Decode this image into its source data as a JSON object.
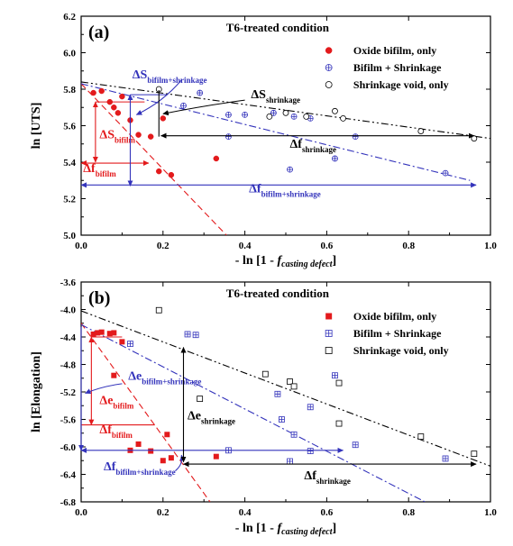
{
  "chart_data": [
    {
      "panel_label": "(a)",
      "title": "T6-treated condition",
      "type": "scatter",
      "xlabel_parts": [
        "- ln [1 - ",
        "f",
        "casting defect",
        "]"
      ],
      "ylabel": "ln [UTS]",
      "xlim": [
        0.0,
        1.0
      ],
      "ylim": [
        5.0,
        6.2
      ],
      "xticks": [
        "0.0",
        "0.2",
        "0.4",
        "0.6",
        "0.8",
        "1.0"
      ],
      "yticks": [
        "5.0",
        "5.2",
        "5.4",
        "5.6",
        "5.8",
        "6.0",
        "6.2"
      ],
      "legend_position": "top-right",
      "series": [
        {
          "name": "Oxide bifilm, only",
          "marker": "filled-circle",
          "color": "#e31a1c",
          "points": [
            [
              0.03,
              5.78
            ],
            [
              0.05,
              5.79
            ],
            [
              0.07,
              5.73
            ],
            [
              0.08,
              5.7
            ],
            [
              0.09,
              5.67
            ],
            [
              0.1,
              5.76
            ],
            [
              0.12,
              5.63
            ],
            [
              0.14,
              5.55
            ],
            [
              0.17,
              5.54
            ],
            [
              0.2,
              5.64
            ],
            [
              0.19,
              5.35
            ],
            [
              0.22,
              5.33
            ],
            [
              0.33,
              5.42
            ]
          ]
        },
        {
          "name": "Bifilm + Shrinkage",
          "marker": "circle-plus",
          "color": "#3333bb",
          "points": [
            [
              0.25,
              5.71
            ],
            [
              0.29,
              5.78
            ],
            [
              0.36,
              5.66
            ],
            [
              0.36,
              5.54
            ],
            [
              0.4,
              5.66
            ],
            [
              0.47,
              5.67
            ],
            [
              0.51,
              5.36
            ],
            [
              0.52,
              5.65
            ],
            [
              0.56,
              5.64
            ],
            [
              0.62,
              5.42
            ],
            [
              0.67,
              5.54
            ],
            [
              0.89,
              5.34
            ]
          ]
        },
        {
          "name": "Shrinkage void, only",
          "marker": "open-circle",
          "color": "#000000",
          "points": [
            [
              0.19,
              5.8
            ],
            [
              0.46,
              5.65
            ],
            [
              0.5,
              5.67
            ],
            [
              0.55,
              5.65
            ],
            [
              0.62,
              5.68
            ],
            [
              0.64,
              5.64
            ],
            [
              0.83,
              5.57
            ],
            [
              0.96,
              5.53
            ]
          ]
        }
      ],
      "fit_lines": [
        {
          "series": "Oxide bifilm, only",
          "style": "dashed",
          "color": "#e31a1c",
          "points": [
            [
              0.0,
              5.83
            ],
            [
              0.355,
              5.0
            ]
          ]
        },
        {
          "series": "Bifilm + Shrinkage",
          "style": "dash-dot",
          "color": "#3333bb",
          "points": [
            [
              0.0,
              5.83
            ],
            [
              0.95,
              5.3
            ]
          ]
        },
        {
          "series": "Shrinkage void, only",
          "style": "dash-dot-dot",
          "color": "#000000",
          "points": [
            [
              0.0,
              5.84
            ],
            [
              1.0,
              5.53
            ]
          ]
        }
      ],
      "annotations": [
        {
          "label": "ΔS",
          "sub": "bifilm",
          "color": "#e31a1c"
        },
        {
          "label": "Δf",
          "sub": "bifilm",
          "color": "#e31a1c"
        },
        {
          "label": "ΔS",
          "sub": "bifilm+shrinkage",
          "color": "#3333bb"
        },
        {
          "label": "Δf",
          "sub": "bifilm+shrinkage",
          "color": "#3333bb"
        },
        {
          "label": "ΔS",
          "sub": "shrinkage",
          "color": "#000000"
        },
        {
          "label": "Δf",
          "sub": "shrinkage",
          "color": "#000000"
        }
      ]
    },
    {
      "panel_label": "(b)",
      "title": "T6-treated condition",
      "type": "scatter",
      "xlabel_parts": [
        "- ln [1 - ",
        "f",
        "casting defect",
        "]"
      ],
      "ylabel": "ln [Elongation]",
      "xlim": [
        0.0,
        1.0
      ],
      "ylim": [
        -6.8,
        -3.6
      ],
      "xticks": [
        "0.0",
        "0.2",
        "0.4",
        "0.6",
        "0.8",
        "1.0"
      ],
      "yticks": [
        "-6.8",
        "-6.4",
        "-6.0",
        "-5.6",
        "-5.2",
        "-4.8",
        "-4.4",
        "-4.0",
        "-3.6"
      ],
      "legend_position": "top-right",
      "series": [
        {
          "name": "Oxide bifilm, only",
          "marker": "filled-square",
          "color": "#e31a1c",
          "points": [
            [
              0.03,
              -4.36
            ],
            [
              0.04,
              -4.34
            ],
            [
              0.05,
              -4.33
            ],
            [
              0.07,
              -4.35
            ],
            [
              0.08,
              -4.34
            ],
            [
              0.1,
              -4.47
            ],
            [
              0.08,
              -4.96
            ],
            [
              0.14,
              -5.96
            ],
            [
              0.12,
              -6.05
            ],
            [
              0.17,
              -6.06
            ],
            [
              0.2,
              -6.2
            ],
            [
              0.21,
              -5.82
            ],
            [
              0.22,
              -6.16
            ],
            [
              0.33,
              -6.14
            ]
          ]
        },
        {
          "name": "Bifilm + Shrinkage",
          "marker": "square-plus",
          "color": "#3333bb",
          "points": [
            [
              0.12,
              -4.5
            ],
            [
              0.26,
              -4.36
            ],
            [
              0.28,
              -4.37
            ],
            [
              0.36,
              -6.05
            ],
            [
              0.48,
              -5.23
            ],
            [
              0.49,
              -5.6
            ],
            [
              0.51,
              -6.21
            ],
            [
              0.52,
              -5.82
            ],
            [
              0.56,
              -5.42
            ],
            [
              0.56,
              -6.06
            ],
            [
              0.62,
              -4.96
            ],
            [
              0.67,
              -5.97
            ],
            [
              0.89,
              -6.17
            ]
          ]
        },
        {
          "name": "Shrinkage void, only",
          "marker": "open-square",
          "color": "#000000",
          "points": [
            [
              0.19,
              -4.01
            ],
            [
              0.29,
              -5.3
            ],
            [
              0.45,
              -4.94
            ],
            [
              0.51,
              -5.05
            ],
            [
              0.52,
              -5.12
            ],
            [
              0.63,
              -5.07
            ],
            [
              0.63,
              -5.66
            ],
            [
              0.83,
              -5.85
            ],
            [
              0.96,
              -6.1
            ]
          ]
        }
      ],
      "fit_lines": [
        {
          "series": "Oxide bifilm, only",
          "style": "dashed",
          "color": "#e31a1c",
          "points": [
            [
              0.0,
              -4.2
            ],
            [
              0.315,
              -6.8
            ]
          ]
        },
        {
          "series": "Bifilm + Shrinkage",
          "style": "dash-dot",
          "color": "#3333bb",
          "points": [
            [
              0.0,
              -4.22
            ],
            [
              0.84,
              -6.8
            ]
          ]
        },
        {
          "series": "Shrinkage void, only",
          "style": "dash-dot-dot",
          "color": "#000000",
          "points": [
            [
              0.0,
              -4.02
            ],
            [
              1.0,
              -6.28
            ]
          ]
        }
      ],
      "annotations": [
        {
          "label": "Δe",
          "sub": "bifilm",
          "color": "#e31a1c"
        },
        {
          "label": "Δf",
          "sub": "bifilm",
          "color": "#e31a1c"
        },
        {
          "label": "Δe",
          "sub": "bifilm+shrinkage",
          "color": "#3333bb"
        },
        {
          "label": "Δf",
          "sub": "bifilm+shrinkage",
          "color": "#3333bb"
        },
        {
          "label": "Δe",
          "sub": "shrinkage",
          "color": "#000000"
        },
        {
          "label": "Δf",
          "sub": "shrinkage",
          "color": "#000000"
        }
      ]
    }
  ]
}
